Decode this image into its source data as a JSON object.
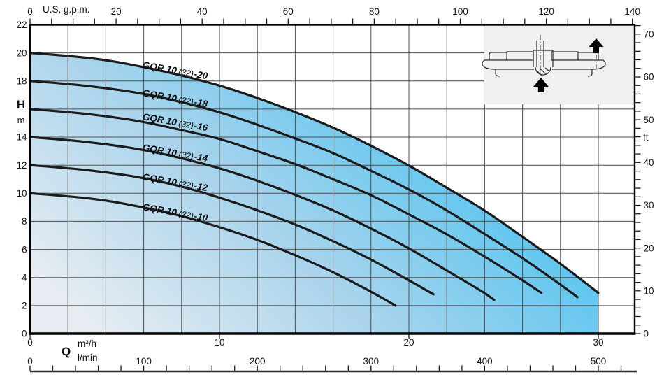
{
  "labels": {
    "top_axis_unit": "U.S. g.p.m.",
    "head_symbol": "H",
    "head_unit": "m",
    "right_axis_unit": "ft",
    "flow_symbol": "Q",
    "flow_unit_m3h": "m³/h",
    "flow_unit_lmin": "l/min"
  },
  "inset": {
    "description": "pump cross-section pictogram with upward flow-direction arrows"
  },
  "chart_data": {
    "type": "line",
    "title": "GQR 10 (32) pump head-flow performance curves",
    "legend_position": "labels-on-curves",
    "grid": true,
    "axes": {
      "top": {
        "unit": "U.S. g.p.m.",
        "major_ticks": [
          0,
          20,
          40,
          60,
          80,
          100,
          120,
          140
        ],
        "minor_step": 5,
        "range": [
          0,
          140
        ]
      },
      "left": {
        "symbol": "H",
        "unit": "m",
        "tick_labels": [
          22,
          20,
          18,
          14,
          12,
          10,
          8,
          6,
          4,
          2,
          0
        ],
        "range": [
          0,
          22
        ],
        "grid_step": 2
      },
      "right": {
        "unit": "ft",
        "major_ticks": [
          70,
          60,
          50,
          40,
          30,
          20,
          10,
          0
        ],
        "minor_step": 2,
        "range": [
          0,
          72
        ]
      },
      "bottom_m3h": {
        "unit": "m³/h",
        "major_ticks": [
          0,
          10,
          20,
          30
        ],
        "range": [
          0,
          31.9
        ],
        "grid_step": 2
      },
      "bottom_lmin": {
        "unit": "l/min",
        "major_ticks": [
          0,
          100,
          200,
          300,
          400,
          500
        ],
        "minor_step": 20,
        "range": [
          0,
          520
        ]
      }
    },
    "series": [
      {
        "name": "GQR 10 (32)-20",
        "label_parts": [
          "GQR 10",
          "(32)",
          "-20"
        ],
        "points": [
          [
            0,
            20
          ],
          [
            2,
            19.8
          ],
          [
            4,
            19.5
          ],
          [
            6,
            19
          ],
          [
            8,
            18.4
          ],
          [
            10,
            17.7
          ],
          [
            12,
            16.8
          ],
          [
            14,
            15.8
          ],
          [
            16,
            14.7
          ],
          [
            18,
            13.4
          ],
          [
            20,
            12
          ],
          [
            22,
            10.4
          ],
          [
            24,
            8.8
          ],
          [
            26,
            6.9
          ],
          [
            28,
            5
          ],
          [
            30,
            2.9
          ]
        ]
      },
      {
        "name": "GQR 10 (32)-18",
        "label_parts": [
          "GQR 10",
          "(32)",
          "-18"
        ],
        "points": [
          [
            0,
            18
          ],
          [
            2,
            17.8
          ],
          [
            4,
            17.5
          ],
          [
            6,
            17.1
          ],
          [
            8,
            16.5
          ],
          [
            10,
            15.8
          ],
          [
            12,
            14.9
          ],
          [
            14,
            13.9
          ],
          [
            16,
            12.9
          ],
          [
            18,
            11.6
          ],
          [
            20,
            10.3
          ],
          [
            22,
            8.8
          ],
          [
            24,
            7.1
          ],
          [
            26,
            5.4
          ],
          [
            28,
            3.5
          ],
          [
            28.9,
            2.6
          ]
        ]
      },
      {
        "name": "GQR 10 (32)-16",
        "label_parts": [
          "GQR 10",
          "(32)",
          "-16"
        ],
        "points": [
          [
            0,
            16
          ],
          [
            2,
            15.8
          ],
          [
            4,
            15.5
          ],
          [
            6,
            15.1
          ],
          [
            8,
            14.5
          ],
          [
            10,
            13.9
          ],
          [
            12,
            13
          ],
          [
            14,
            12.1
          ],
          [
            16,
            11
          ],
          [
            18,
            9.9
          ],
          [
            20,
            8.5
          ],
          [
            22,
            7.1
          ],
          [
            24,
            5.5
          ],
          [
            26,
            3.8
          ],
          [
            27,
            2.9
          ]
        ]
      },
      {
        "name": "GQR 10 (32)-14",
        "label_parts": [
          "GQR 10",
          "(32)",
          "-14"
        ],
        "points": [
          [
            0,
            14
          ],
          [
            2,
            13.8
          ],
          [
            4,
            13.5
          ],
          [
            6,
            13.1
          ],
          [
            8,
            12.5
          ],
          [
            10,
            11.8
          ],
          [
            12,
            10.9
          ],
          [
            14,
            9.9
          ],
          [
            16,
            8.8
          ],
          [
            18,
            7.5
          ],
          [
            20,
            6.1
          ],
          [
            22,
            4.5
          ],
          [
            24,
            2.9
          ],
          [
            24.5,
            2.4
          ]
        ]
      },
      {
        "name": "GQR 10 (32)-12",
        "label_parts": [
          "GQR 10",
          "(32)",
          "-12"
        ],
        "points": [
          [
            0,
            12
          ],
          [
            2,
            11.8
          ],
          [
            4,
            11.5
          ],
          [
            6,
            11.1
          ],
          [
            8,
            10.5
          ],
          [
            10,
            9.7
          ],
          [
            12,
            8.8
          ],
          [
            14,
            7.8
          ],
          [
            16,
            6.6
          ],
          [
            18,
            5.3
          ],
          [
            20,
            3.8
          ],
          [
            21.3,
            2.8
          ]
        ]
      },
      {
        "name": "GQR 10 (32)-10",
        "label_parts": [
          "GQR 10",
          "(32)",
          "-10"
        ],
        "points": [
          [
            0,
            10
          ],
          [
            2,
            9.8
          ],
          [
            4,
            9.5
          ],
          [
            6,
            9
          ],
          [
            8,
            8.4
          ],
          [
            10,
            7.6
          ],
          [
            12,
            6.7
          ],
          [
            14,
            5.6
          ],
          [
            16,
            4.4
          ],
          [
            18,
            3
          ],
          [
            19.3,
            2
          ]
        ]
      }
    ],
    "shaded_region": {
      "bounded_by": "GQR 10 (32)-20",
      "right_edge_q_m3h": 30,
      "gradient": [
        "#e7edf2",
        "#a9d4ec",
        "#58c5f0"
      ]
    },
    "colors": {
      "grid": "#4f4f4f",
      "curve": "#1b1b1b",
      "border": "#000000",
      "inset_background": "#f0f0ee",
      "text": "#141414",
      "arrow": "#000000"
    }
  }
}
